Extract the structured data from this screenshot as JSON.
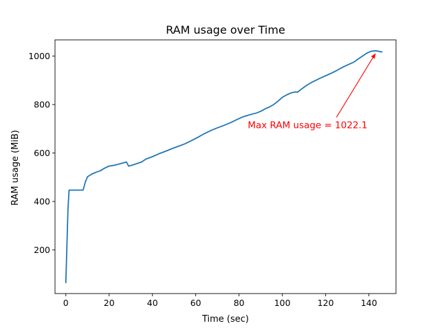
{
  "chart_data": {
    "type": "line",
    "title": "RAM usage over Time",
    "xlabel": "Time (sec)",
    "ylabel": "RAM usage (MiB)",
    "xlim": [
      -5,
      152.5
    ],
    "ylim": [
      20,
      1067
    ],
    "xticks": [
      0,
      20,
      40,
      60,
      80,
      100,
      120,
      140
    ],
    "yticks": [
      200,
      400,
      600,
      800,
      1000
    ],
    "grid": false,
    "line_color": "#1f77b4",
    "series": [
      {
        "x": [
          0,
          1,
          1.5,
          3,
          5,
          7,
          7.5,
          8,
          9,
          10,
          12,
          14,
          16,
          18,
          20,
          22,
          24,
          26,
          28,
          29,
          31,
          33,
          35,
          37,
          40,
          43,
          46,
          49,
          52,
          55,
          58,
          61,
          64,
          67,
          70,
          73,
          76,
          79,
          82,
          85,
          88,
          90,
          92,
          94,
          96,
          98,
          100,
          102,
          104,
          106,
          107,
          109,
          111,
          113,
          115,
          117,
          119,
          121,
          123,
          125,
          127,
          129,
          131,
          133,
          135,
          137,
          139,
          141,
          143,
          144.5,
          146
        ],
        "y": [
          65,
          370,
          447,
          447,
          447,
          447,
          447,
          447,
          480,
          502,
          513,
          521,
          527,
          538,
          546,
          549,
          553,
          558,
          563,
          546,
          551,
          557,
          563,
          575,
          585,
          597,
          607,
          618,
          628,
          638,
          651,
          665,
          680,
          693,
          704,
          714,
          725,
          738,
          750,
          758,
          765,
          772,
          782,
          790,
          800,
          814,
          830,
          840,
          848,
          852,
          851,
          865,
          878,
          889,
          898,
          907,
          915,
          923,
          931,
          940,
          950,
          959,
          967,
          975,
          988,
          1000,
          1012,
          1020,
          1022.1,
          1020,
          1017
        ]
      }
    ],
    "annotation": {
      "text": "Max RAM usage = 1022.1",
      "point": [
        143,
        1022.1
      ],
      "text_anchor": [
        125,
        770
      ],
      "color": "#ff0000"
    }
  }
}
